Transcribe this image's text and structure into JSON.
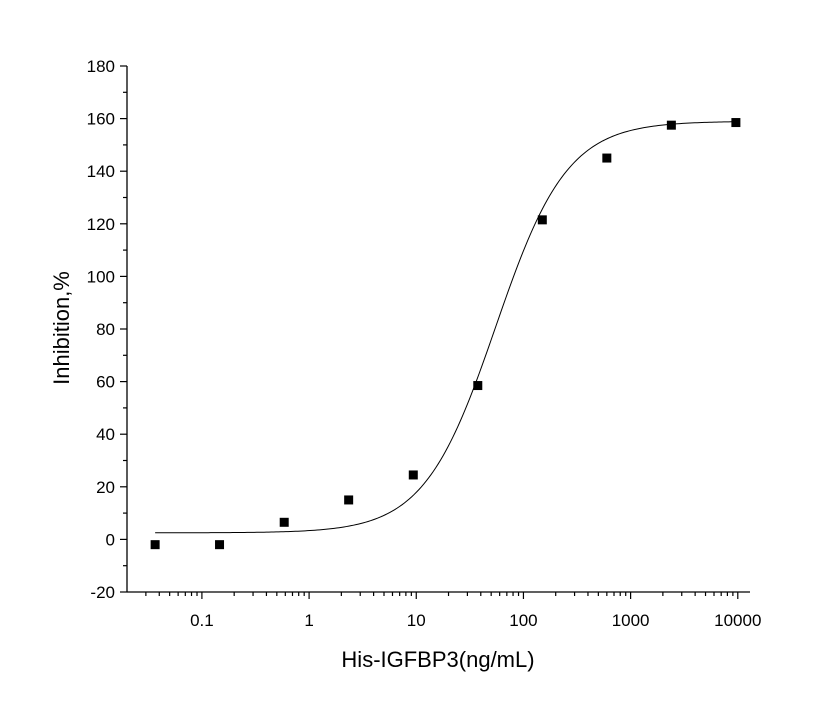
{
  "chart_data": {
    "type": "scatter",
    "title": "",
    "xlabel": "His-IGFBP3(ng/mL)",
    "ylabel": "Inhibition,%",
    "xscale": "log",
    "xlim": [
      0.02,
      13000
    ],
    "ylim": [
      -20,
      180
    ],
    "xticks": [
      0.1,
      1,
      10,
      100,
      1000,
      10000
    ],
    "xtick_labels": [
      "0.1",
      "1",
      "10",
      "100",
      "1000",
      "10000"
    ],
    "yticks": [
      -20,
      0,
      20,
      40,
      60,
      80,
      100,
      120,
      140,
      160,
      180
    ],
    "ytick_labels": [
      "-20",
      "0",
      "20",
      "40",
      "60",
      "80",
      "100",
      "120",
      "140",
      "160",
      "180"
    ],
    "grid": false,
    "legend": "none",
    "series": [
      {
        "kind": "points",
        "marker": "square",
        "x": [
          0.0366,
          0.146,
          0.586,
          2.34,
          9.38,
          37.5,
          150,
          600,
          2400,
          9600
        ],
        "y": [
          -2,
          -2,
          6.5,
          15,
          24.5,
          58.5,
          121.5,
          145,
          157.5,
          158.5
        ]
      },
      {
        "kind": "fit-curve",
        "model": "four-parameter logistic",
        "bottom": 2.5,
        "top": 159,
        "ec50": 55,
        "hill": 1.3
      }
    ]
  }
}
